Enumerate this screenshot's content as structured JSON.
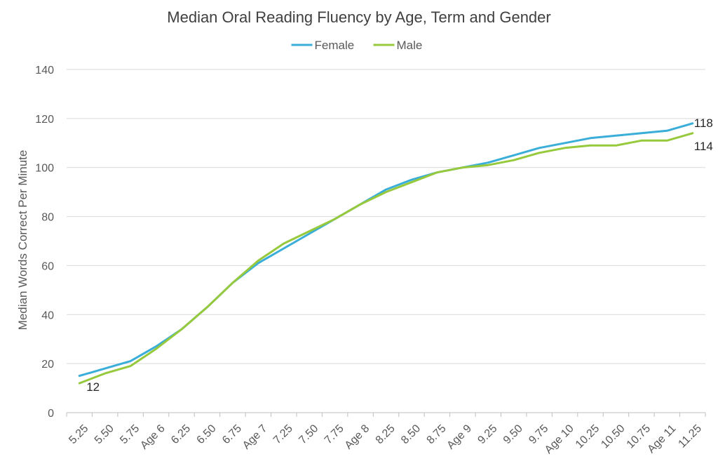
{
  "chart_data": {
    "type": "line",
    "title": "Median Oral Reading Fluency by Age, Term and Gender",
    "xlabel": "",
    "ylabel": "Median Words Correct Per Minute",
    "ylim": [
      0,
      140
    ],
    "yticks": [
      0,
      20,
      40,
      60,
      80,
      100,
      120,
      140
    ],
    "grid": true,
    "legend_position": "top",
    "categories": [
      "5.25",
      "5.50",
      "5.75",
      "Age 6",
      "6.25",
      "6.50",
      "6.75",
      "Age 7",
      "7.25",
      "7.50",
      "7.75",
      "Age 8",
      "8.25",
      "8.50",
      "8.75",
      "Age 9",
      "9.25",
      "9.50",
      "9.75",
      "Age 10",
      "10.25",
      "10.50",
      "10.75",
      "Age 11",
      "11.25"
    ],
    "series": [
      {
        "name": "Female",
        "color": "#3AAED8",
        "values": [
          15,
          18,
          21,
          27,
          34,
          43,
          53,
          61,
          67,
          73,
          79,
          85,
          91,
          95,
          98,
          100,
          102,
          105,
          108,
          110,
          112,
          113,
          114,
          115,
          118
        ]
      },
      {
        "name": "Male",
        "color": "#97C93C",
        "values": [
          12,
          16,
          19,
          26,
          34,
          43,
          53,
          62,
          69,
          74,
          79,
          85,
          90,
          94,
          98,
          100,
          101,
          103,
          106,
          108,
          109,
          109,
          111,
          111,
          114
        ]
      }
    ],
    "data_labels": [
      {
        "series": 0,
        "index": 24,
        "text": "118"
      },
      {
        "series": 1,
        "index": 24,
        "text": "114"
      },
      {
        "series": 1,
        "index": 0,
        "text": "12"
      }
    ],
    "colors": {
      "grid": "#D9D9D9",
      "axis": "#BFBFBF",
      "text": "#595959"
    }
  }
}
